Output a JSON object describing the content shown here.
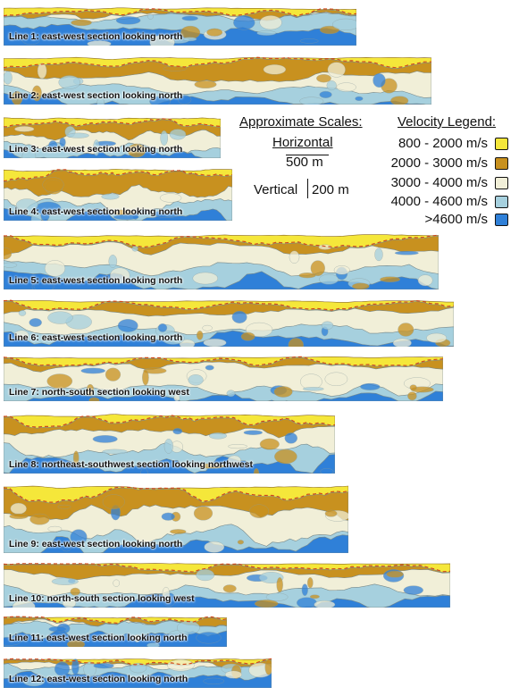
{
  "sections": [
    {
      "label": "Line 1:  east-west section looking north",
      "profile": "deep"
    },
    {
      "label": "Line 2:  east-west section looking north",
      "profile": "thick"
    },
    {
      "label": "Line 3:  east-west section looking north",
      "profile": "thick"
    },
    {
      "label": "Line 4:  east-west section looking north",
      "profile": "thick"
    },
    {
      "label": "Line 5:  east-west section looking north",
      "profile": "mixed"
    },
    {
      "label": "Line 6:  east-west section looking north",
      "profile": "mixed"
    },
    {
      "label": "Line 7:  north-south section looking west",
      "profile": "light"
    },
    {
      "label": "Line 8:  northeast-southwest section looking northwest",
      "profile": "mixed"
    },
    {
      "label": "Line 9:  east-west section looking north",
      "profile": "thick"
    },
    {
      "label": "Line 10:  north-south section looking west",
      "profile": "mixed"
    },
    {
      "label": "Line 11:  east-west section looking north",
      "profile": "deep"
    },
    {
      "label": "Line 12:  east-west section looking north",
      "profile": "deep"
    }
  ],
  "scales": {
    "heading": "Approximate Scales:",
    "horizontal_label": "Horizontal",
    "horizontal_value": "500 m",
    "vertical_label": "Vertical",
    "vertical_value": "200 m"
  },
  "legend": {
    "heading": "Velocity Legend:",
    "items": [
      {
        "label": "800 - 2000 m/s",
        "color": "#f5e73a"
      },
      {
        "label": "2000 - 3000 m/s",
        "color": "#c8911f"
      },
      {
        "label": "3000 - 4000 m/s",
        "color": "#f1efd8"
      },
      {
        "label": "4000 - 4600 m/s",
        "color": "#a6d0de"
      },
      {
        "label": ">4600 m/s",
        "color": "#2f80d8"
      }
    ]
  }
}
